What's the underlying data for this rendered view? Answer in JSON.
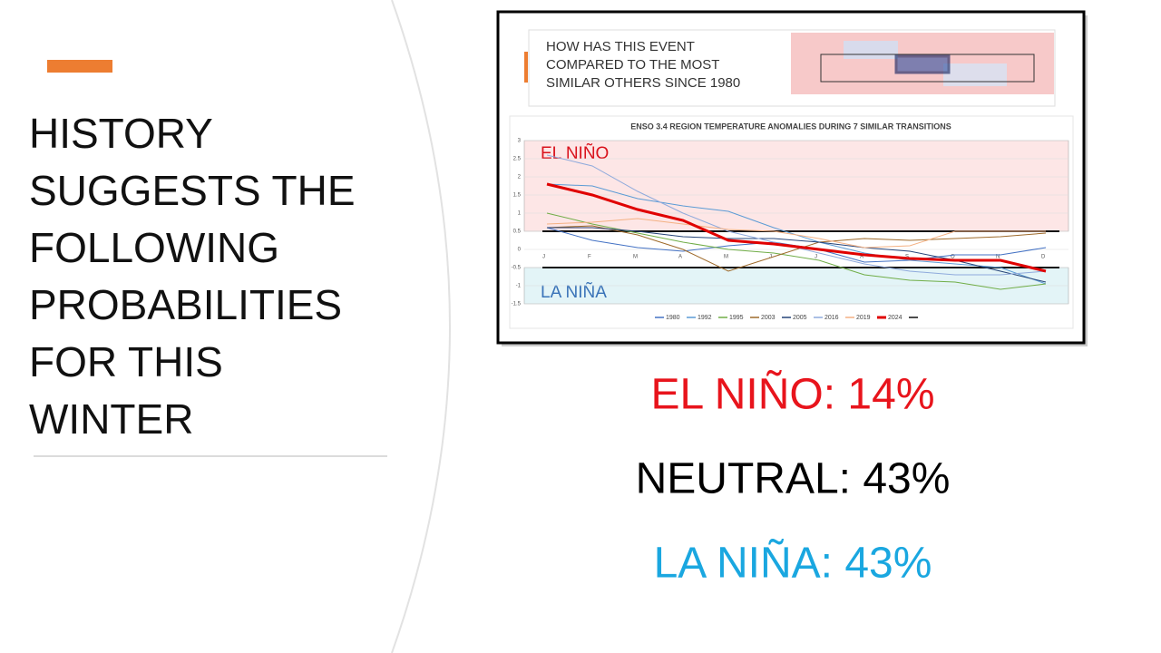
{
  "slide": {
    "title_lines": [
      "HISTORY",
      "SUGGESTS THE",
      "FOLLOWING",
      "PROBABILITIES",
      "FOR THIS",
      "WINTER"
    ],
    "probabilities": [
      {
        "text": "EL NIÑO: 14%",
        "color": "#e8141c"
      },
      {
        "text": "NEUTRAL: 43%",
        "color": "#000000"
      },
      {
        "text": "LA NIÑA: 43%",
        "color": "#1aa7e0"
      }
    ],
    "figure_header": [
      "HOW HAS THIS EVENT",
      "COMPARED TO THE MOST",
      "SIMILAR OTHERS SINCE 1980"
    ]
  },
  "chart_data": {
    "type": "line",
    "title": "ENSO 3.4 REGION TEMPERATURE ANOMALIES DURING 7 SIMILAR TRANSITIONS",
    "categories": [
      "J",
      "F",
      "M",
      "A",
      "M",
      "J",
      "J",
      "A",
      "S",
      "O",
      "N",
      "D"
    ],
    "ylim": [
      -1.5,
      3
    ],
    "yticks": [
      -1.5,
      -1,
      -0.5,
      0,
      0.5,
      1,
      1.5,
      2,
      2.5,
      3
    ],
    "grid": true,
    "thresholds": [
      0.5,
      -0.5
    ],
    "threshold_color": "#111111",
    "region_labels": [
      {
        "text": "EL NIÑO",
        "color": "#d9121c",
        "fill": "#fde6e6"
      },
      {
        "text": "LA NIÑA",
        "color": "#3a73b8",
        "fill": "#e3f4f7"
      }
    ],
    "series": [
      {
        "name": "1980",
        "color": "#4472c4",
        "values": [
          0.6,
          0.25,
          0.05,
          -0.05,
          0.1,
          0.2,
          0,
          -0.35,
          -0.3,
          -0.15,
          -0.15,
          0.05
        ]
      },
      {
        "name": "1992",
        "color": "#5b9bd5",
        "values": [
          1.8,
          1.75,
          1.4,
          1.2,
          1.05,
          0.6,
          0.2,
          -0.1,
          -0.3,
          -0.4,
          -0.5,
          -0.95
        ]
      },
      {
        "name": "1995",
        "color": "#70ad47",
        "values": [
          1.0,
          0.7,
          0.45,
          0.2,
          0,
          -0.1,
          -0.3,
          -0.7,
          -0.85,
          -0.9,
          -1.1,
          -0.95
        ]
      },
      {
        "name": "2003",
        "color": "#9e6a2a",
        "values": [
          0.6,
          0.65,
          0.4,
          0,
          -0.6,
          -0.2,
          0.2,
          0.3,
          0.25,
          0.3,
          0.35,
          0.45
        ]
      },
      {
        "name": "2005",
        "color": "#264478",
        "values": [
          0.6,
          0.6,
          0.5,
          0.35,
          0.3,
          0.3,
          0.2,
          0.05,
          -0.05,
          -0.3,
          -0.6,
          -0.9
        ]
      },
      {
        "name": "2016",
        "color": "#8faadc",
        "values": [
          2.6,
          2.3,
          1.6,
          1.0,
          0.5,
          0.2,
          -0.1,
          -0.4,
          -0.6,
          -0.7,
          -0.7,
          -0.6
        ]
      },
      {
        "name": "2019",
        "color": "#f4b183",
        "values": [
          0.7,
          0.75,
          0.85,
          0.7,
          0.55,
          0.5,
          0.3,
          0.05,
          0.1,
          0.5,
          0.5,
          0.5
        ]
      },
      {
        "name": "2024",
        "color": "#e00000",
        "width": 3,
        "values": [
          1.8,
          1.5,
          1.1,
          0.8,
          0.25,
          0.15,
          0,
          -0.15,
          -0.25,
          -0.3,
          -0.3,
          -0.6
        ]
      }
    ]
  }
}
